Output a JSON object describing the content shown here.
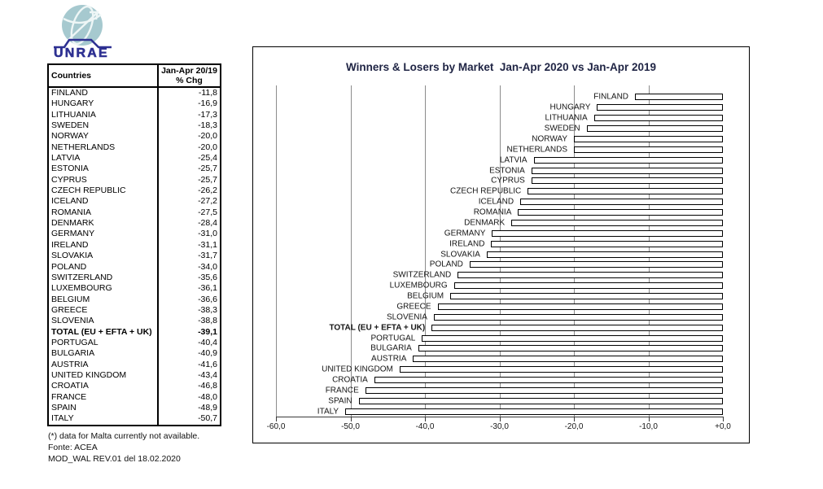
{
  "logo": {
    "text": "UNRAE",
    "globe_color": "#a6c9cf",
    "brand_color": "#2e3192"
  },
  "table": {
    "header": {
      "col1": "Countries",
      "col2_line1": "Jan-Apr 20/19",
      "col2_line2": "% Chg"
    },
    "rows": [
      {
        "country": "FINLAND",
        "chg": "-11,8",
        "bold": false
      },
      {
        "country": "HUNGARY",
        "chg": "-16,9",
        "bold": false
      },
      {
        "country": "LITHUANIA",
        "chg": "-17,3",
        "bold": false
      },
      {
        "country": "SWEDEN",
        "chg": "-18,3",
        "bold": false
      },
      {
        "country": "NORWAY",
        "chg": "-20,0",
        "bold": false
      },
      {
        "country": "NETHERLANDS",
        "chg": "-20,0",
        "bold": false
      },
      {
        "country": "LATVIA",
        "chg": "-25,4",
        "bold": false
      },
      {
        "country": "ESTONIA",
        "chg": "-25,7",
        "bold": false
      },
      {
        "country": "CYPRUS",
        "chg": "-25,7",
        "bold": false
      },
      {
        "country": "CZECH REPUBLIC",
        "chg": "-26,2",
        "bold": false
      },
      {
        "country": "ICELAND",
        "chg": "-27,2",
        "bold": false
      },
      {
        "country": "ROMANIA",
        "chg": "-27,5",
        "bold": false
      },
      {
        "country": "DENMARK",
        "chg": "-28,4",
        "bold": false
      },
      {
        "country": "GERMANY",
        "chg": "-31,0",
        "bold": false
      },
      {
        "country": "IRELAND",
        "chg": "-31,1",
        "bold": false
      },
      {
        "country": "SLOVAKIA",
        "chg": "-31,7",
        "bold": false
      },
      {
        "country": "POLAND",
        "chg": "-34,0",
        "bold": false
      },
      {
        "country": "SWITZERLAND",
        "chg": "-35,6",
        "bold": false
      },
      {
        "country": "LUXEMBOURG",
        "chg": "-36,1",
        "bold": false
      },
      {
        "country": "BELGIUM",
        "chg": "-36,6",
        "bold": false
      },
      {
        "country": "GREECE",
        "chg": "-38,3",
        "bold": false
      },
      {
        "country": "SLOVENIA",
        "chg": "-38,8",
        "bold": false
      },
      {
        "country": "TOTAL (EU + EFTA + UK)",
        "chg": "-39,1",
        "bold": true
      },
      {
        "country": "PORTUGAL",
        "chg": "-40,4",
        "bold": false
      },
      {
        "country": "BULGARIA",
        "chg": "-40,9",
        "bold": false
      },
      {
        "country": "AUSTRIA",
        "chg": "-41,6",
        "bold": false
      },
      {
        "country": "UNITED KINGDOM",
        "chg": "-43,4",
        "bold": false
      },
      {
        "country": "CROATIA",
        "chg": "-46,8",
        "bold": false
      },
      {
        "country": "FRANCE",
        "chg": "-48,0",
        "bold": false
      },
      {
        "country": "SPAIN",
        "chg": "-48,9",
        "bold": false
      },
      {
        "country": "ITALY",
        "chg": "-50,7",
        "bold": false
      }
    ]
  },
  "footnotes": [
    "(*) data for Malta currently not available.",
    "Fonte: ACEA",
    "MOD_WAL REV.01 del 18.02.2020"
  ],
  "chart_data": {
    "type": "bar",
    "orientation": "horizontal",
    "title": "Winners & Losers by Market  Jan-Apr 2020 vs Jan-Apr 2019",
    "categories": [
      "FINLAND",
      "HUNGARY",
      "LITHUANIA",
      "SWEDEN",
      "NORWAY",
      "NETHERLANDS",
      "LATVIA",
      "ESTONIA",
      "CYPRUS",
      "CZECH REPUBLIC",
      "ICELAND",
      "ROMANIA",
      "DENMARK",
      "GERMANY",
      "IRELAND",
      "SLOVAKIA",
      "POLAND",
      "SWITZERLAND",
      "LUXEMBOURG",
      "BELGIUM",
      "GREECE",
      "SLOVENIA",
      "TOTAL (EU + EFTA + UK)",
      "PORTUGAL",
      "BULGARIA",
      "AUSTRIA",
      "UNITED KINGDOM",
      "CROATIA",
      "FRANCE",
      "SPAIN",
      "ITALY"
    ],
    "values": [
      -11.8,
      -16.9,
      -17.3,
      -18.3,
      -20.0,
      -20.0,
      -25.4,
      -25.7,
      -25.7,
      -26.2,
      -27.2,
      -27.5,
      -28.4,
      -31.0,
      -31.1,
      -31.7,
      -34.0,
      -35.6,
      -36.1,
      -36.6,
      -38.3,
      -38.8,
      -39.1,
      -40.4,
      -40.9,
      -41.6,
      -43.4,
      -46.8,
      -48.0,
      -48.9,
      -50.7
    ],
    "emphasized_category": "TOTAL (EU + EFTA + UK)",
    "xlim": [
      -60,
      0
    ],
    "xticks": [
      "-60,0",
      "-50,0",
      "-40,0",
      "-30,0",
      "-20,0",
      "-10,0",
      "+0,0"
    ],
    "xtick_values": [
      -60,
      -50,
      -40,
      -30,
      -20,
      -10,
      0
    ],
    "grid": "vertical",
    "legend": "none",
    "bar_fill": "#ffffff",
    "bar_border": "#000000"
  },
  "colors": {
    "title": "#1f2444",
    "gridline": "#8c8c8c",
    "axis": "#3a3a3a"
  }
}
